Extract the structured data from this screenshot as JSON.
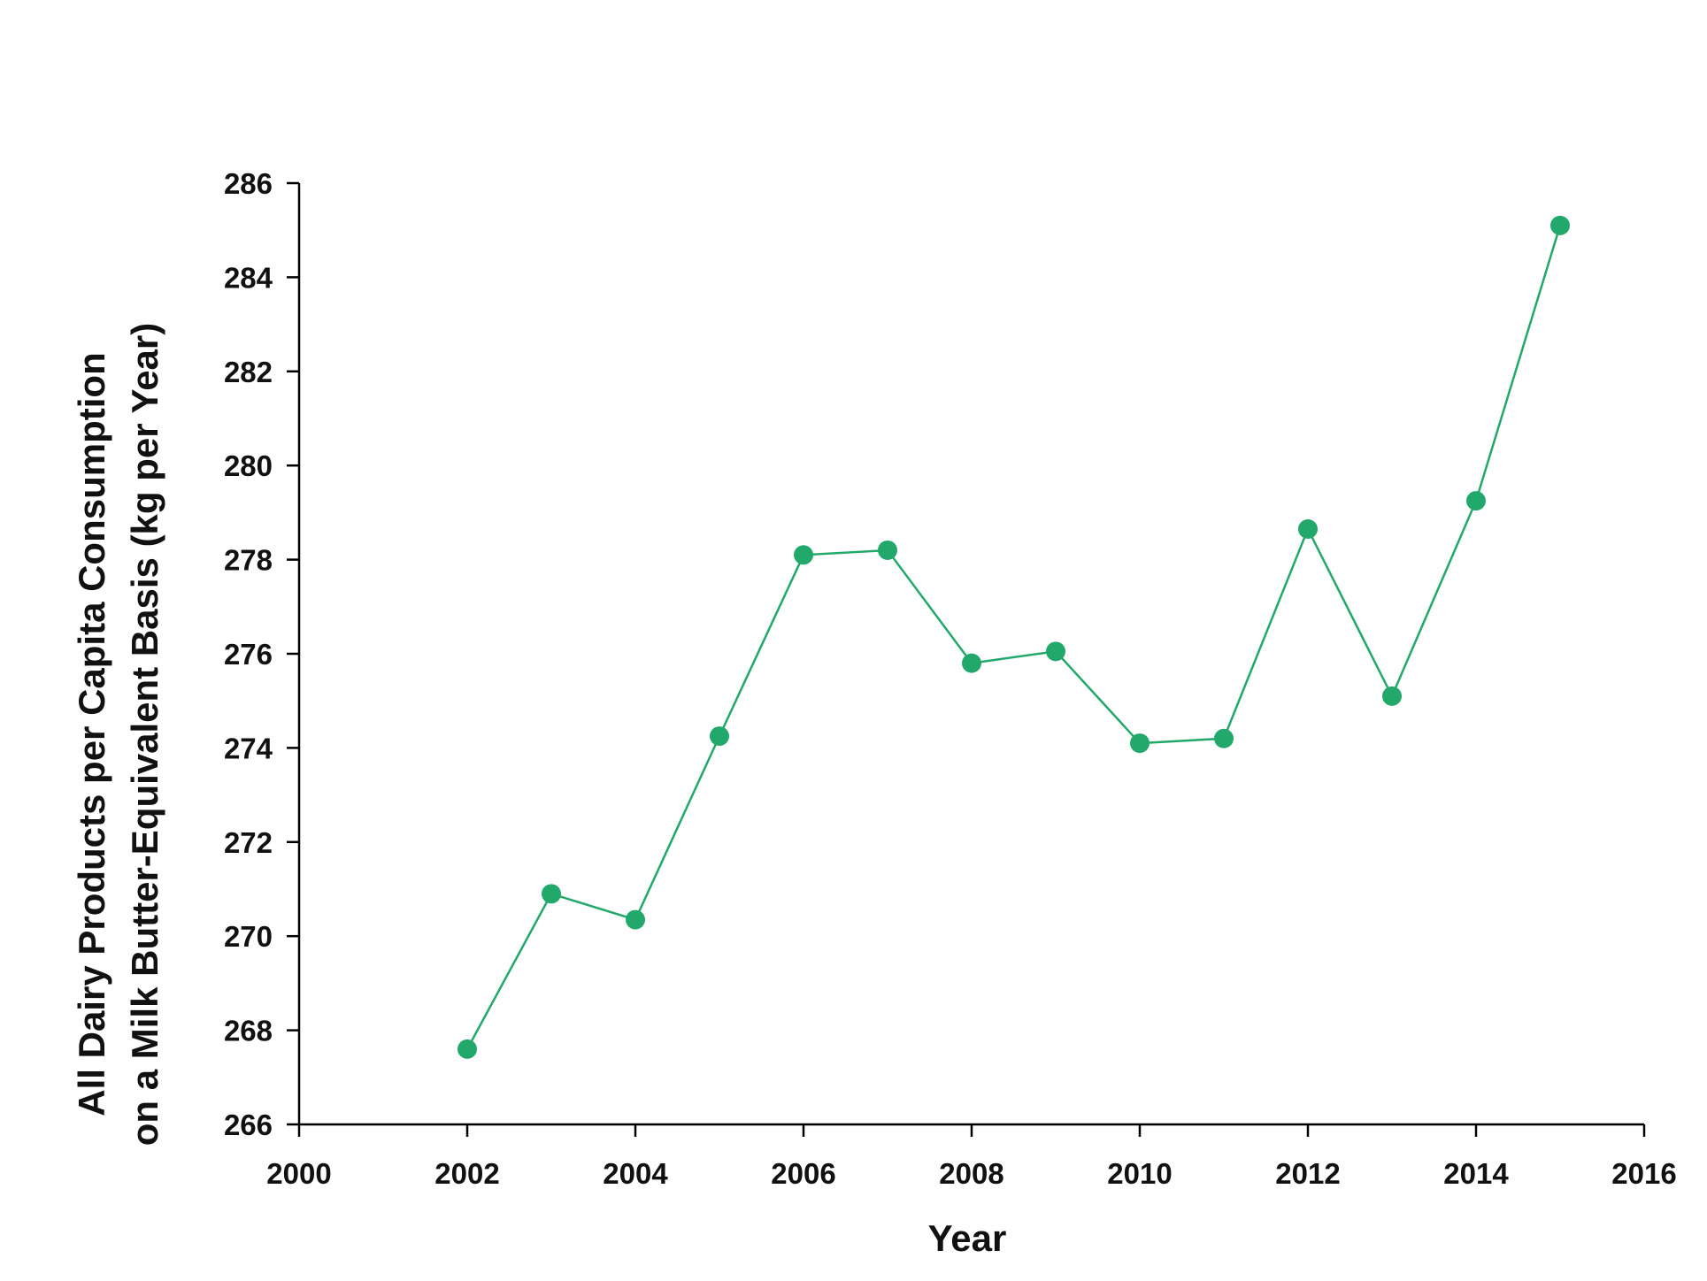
{
  "chart_data": {
    "type": "line",
    "title": "",
    "xlabel": "Year",
    "ylabel_lines": [
      "All Dairy Products per Capita Consumption",
      "on a Milk Butter-Equivalent Basis (kg per Year)"
    ],
    "xlim": [
      2000,
      2016
    ],
    "ylim": [
      266,
      286
    ],
    "x_ticks": [
      2000,
      2002,
      2004,
      2006,
      2008,
      2010,
      2012,
      2014,
      2016
    ],
    "y_ticks": [
      266,
      268,
      270,
      272,
      274,
      276,
      278,
      280,
      282,
      284,
      286
    ],
    "grid": false,
    "legend": "none",
    "series": [
      {
        "color": "#22a86a",
        "x": [
          2002,
          2003,
          2004,
          2005,
          2006,
          2007,
          2008,
          2009,
          2010,
          2011,
          2012,
          2013,
          2014,
          2015
        ],
        "y": [
          267.6,
          270.9,
          270.35,
          274.25,
          278.1,
          278.2,
          275.8,
          276.05,
          274.1,
          274.2,
          278.65,
          275.1,
          279.25,
          285.1
        ]
      }
    ]
  }
}
